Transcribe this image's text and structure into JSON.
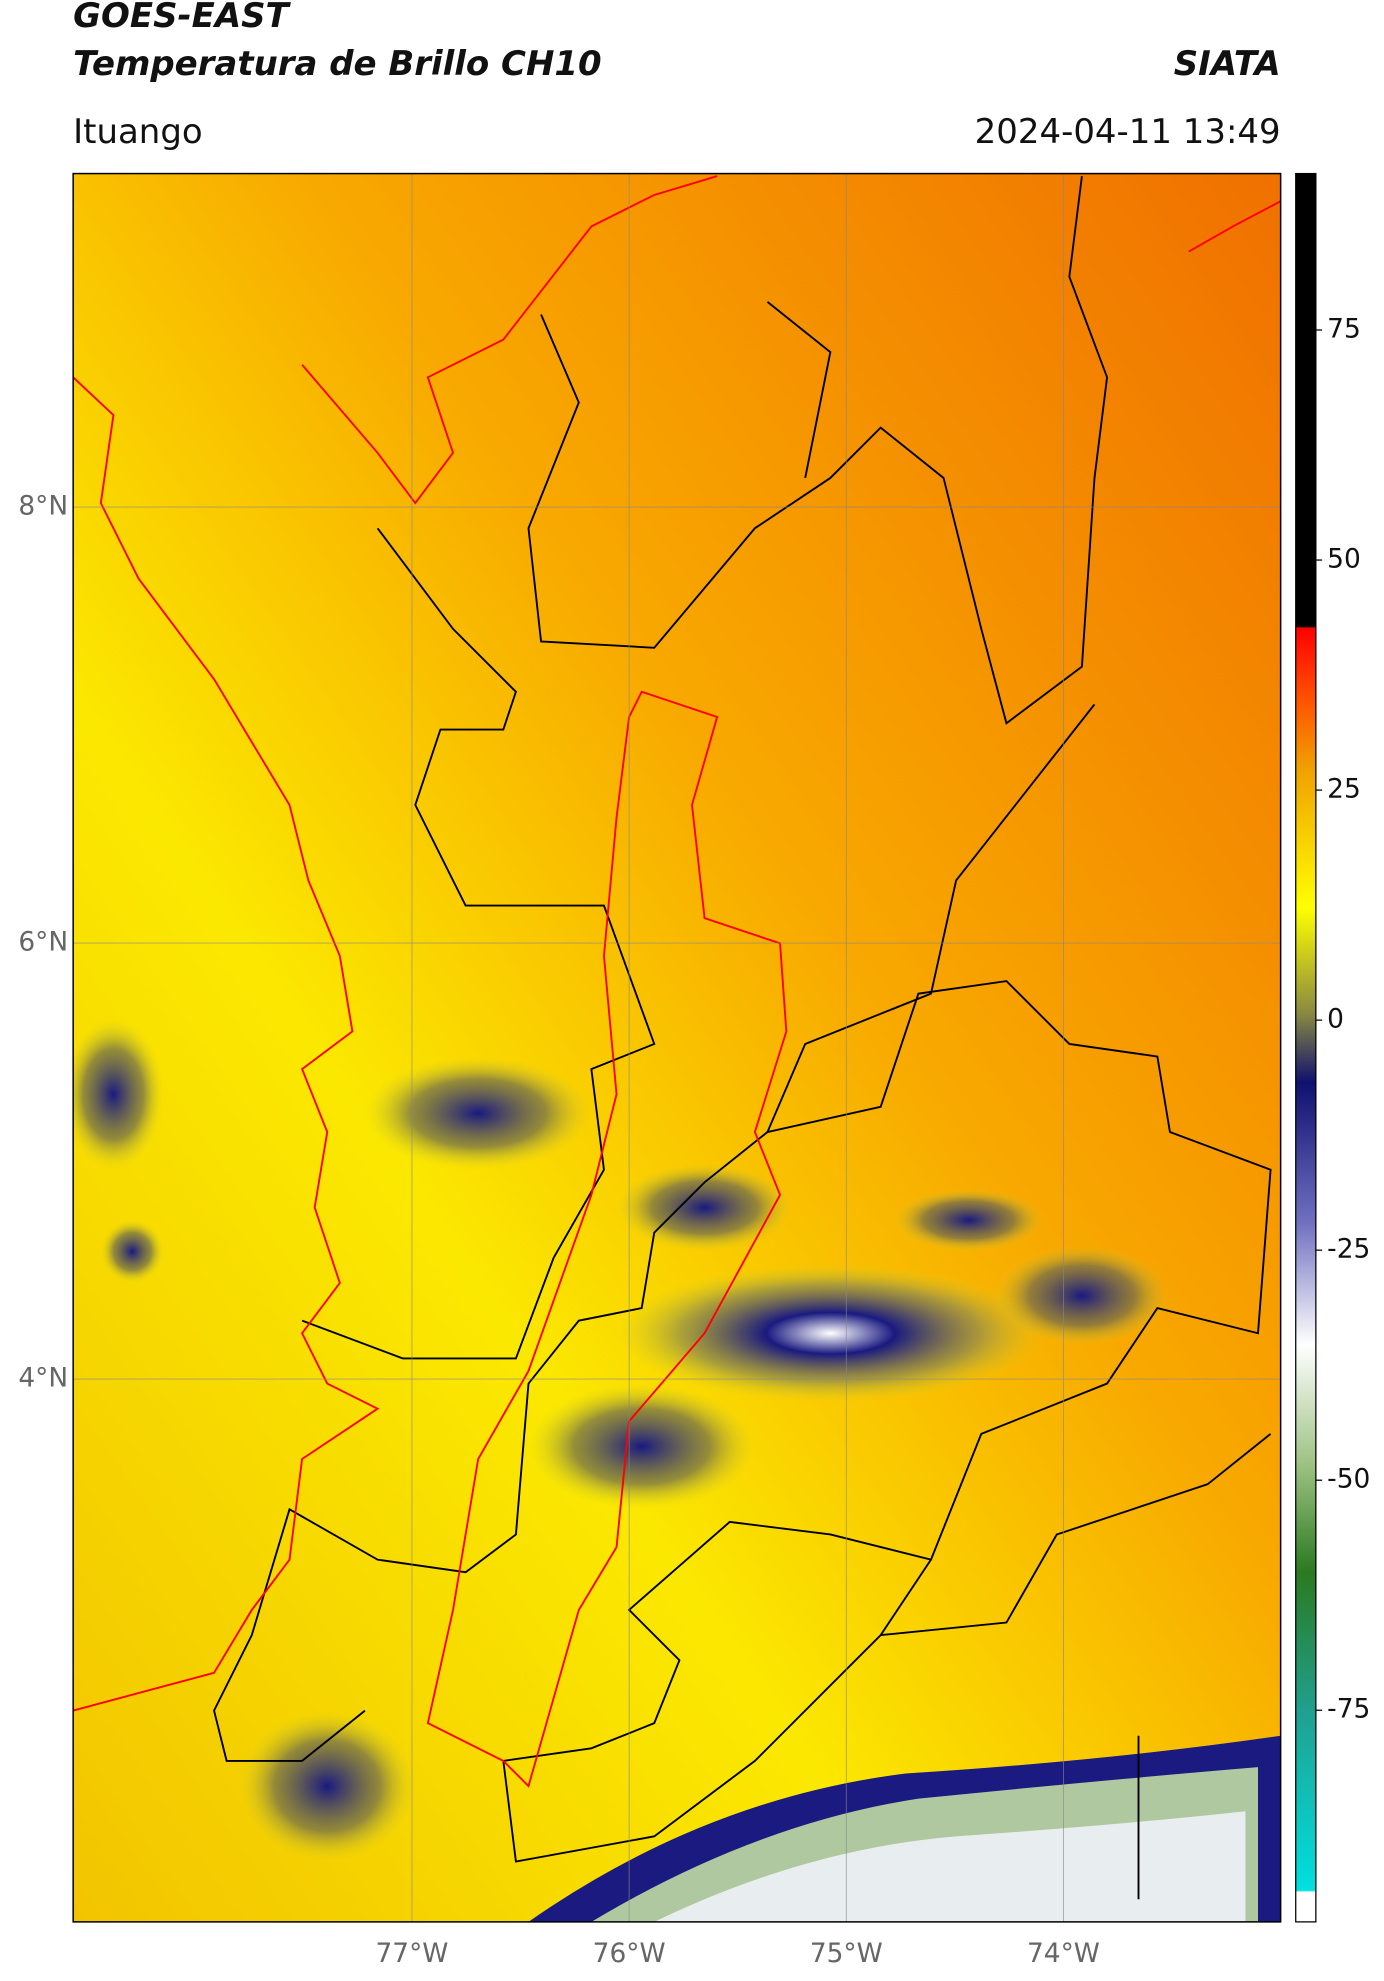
{
  "header": {
    "title": "GOES-EAST",
    "subtitle": "Temperatura de Brillo CH10",
    "source": "SIATA",
    "location": "Ituango",
    "datetime": "2024-04-11 13:49"
  },
  "map": {
    "lonlim": [
      -78.56,
      -73.0
    ],
    "latlim": [
      1.51,
      9.53
    ],
    "lon_ticks": [
      {
        "value": -77,
        "label": "77°W"
      },
      {
        "value": -76,
        "label": "76°W"
      },
      {
        "value": -75,
        "label": "75°W"
      },
      {
        "value": -74,
        "label": "74°W"
      }
    ],
    "lat_ticks": [
      {
        "value": 8,
        "label": "8°N"
      },
      {
        "value": 6,
        "label": "6°N"
      },
      {
        "value": 4,
        "label": "4°N"
      }
    ]
  },
  "colorbar": {
    "lim": [
      -98,
      92
    ],
    "ticks": [
      75,
      50,
      25,
      0,
      -25,
      -50,
      -75
    ]
  }
}
